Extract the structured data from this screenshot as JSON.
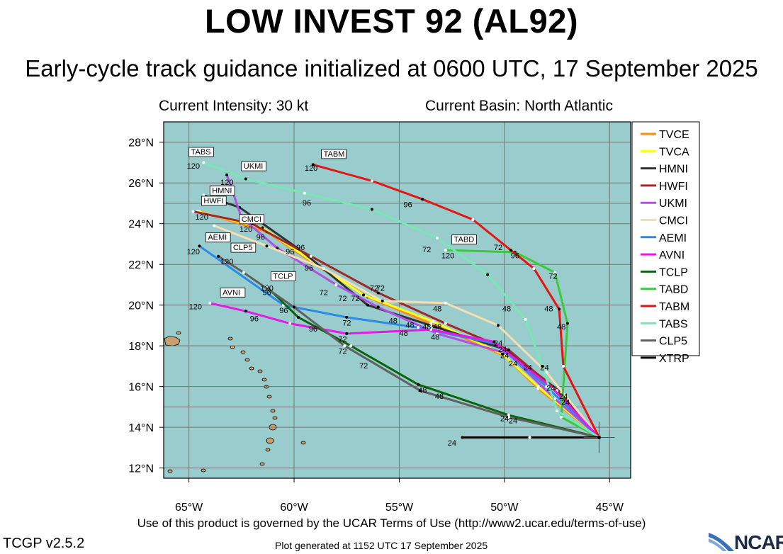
{
  "header": {
    "title": "LOW INVEST 92 (AL92)",
    "subtitle": "Early-cycle track guidance initialized at 0600 UTC, 17 September 2025",
    "intensity": "Current Intensity: 30 kt",
    "basin": "Current Basin: North Atlantic"
  },
  "footer": {
    "terms": "Use of this product is governed by the UCAR Terms of Use (http://www2.ucar.edu/terms-of-use)",
    "version": "TCGP v2.5.2",
    "generated": "Plot generated at 1152 UTC   17 September 2025",
    "logo_text": "NCAR"
  },
  "colors": {
    "ocean": "#99cccc",
    "land": "#c8a070",
    "grid": "#777777"
  },
  "chart_data": {
    "type": "line",
    "map": "track-guidance",
    "xlim": [
      -66.2,
      -44.0
    ],
    "ylim": [
      11.5,
      29.0
    ],
    "xticks": [
      -65,
      -60,
      -55,
      -50,
      -45
    ],
    "xtick_labels": [
      "65°W",
      "60°W",
      "55°W",
      "50°W",
      "45°W"
    ],
    "yticks": [
      12,
      14,
      16,
      18,
      20,
      22,
      24,
      26,
      28
    ],
    "ytick_labels": [
      "12°N",
      "14°N",
      "16°N",
      "18°N",
      "20°N",
      "22°N",
      "24°N",
      "26°N",
      "28°N"
    ],
    "initial_position": {
      "lon": -45.5,
      "lat": 13.5
    },
    "series": [
      {
        "name": "TVCE",
        "color": "#ff8c1a",
        "points": [
          [
            -45.5,
            13.5
          ],
          [
            -48.4,
            15.9
          ],
          [
            -50.0,
            17.5
          ],
          [
            -53.5,
            19.1
          ],
          [
            -56.5,
            20.4
          ],
          [
            -59.0,
            22.0
          ],
          [
            -61.3,
            23.6
          ],
          [
            -64.5,
            24.6
          ]
        ],
        "hours": [
          0,
          24,
          36,
          48,
          72,
          96,
          120,
          120
        ],
        "label": "TVCE",
        "label_pos": [
          -64.1,
          25.0
        ],
        "label_text": ""
      },
      {
        "name": "TVCA",
        "color": "#ffff1a",
        "points": [
          [
            -45.5,
            13.5
          ],
          [
            -48.4,
            16.0
          ],
          [
            -50.1,
            17.6
          ],
          [
            -53.4,
            19.2
          ],
          [
            -56.7,
            20.5
          ],
          [
            -59.2,
            22.2
          ],
          [
            -61.5,
            23.8
          ],
          [
            -64.6,
            24.6
          ]
        ],
        "hours": [],
        "label_text": ""
      },
      {
        "name": "HMNI",
        "color": "#333333",
        "points": [
          [
            -45.5,
            13.5
          ],
          [
            -47.3,
            15.7
          ],
          [
            -49.9,
            17.8
          ],
          [
            -53.5,
            19.0
          ],
          [
            -56.5,
            20.0
          ],
          [
            -59.7,
            22.7
          ],
          [
            -62.6,
            24.8
          ],
          [
            -64.3,
            25.4
          ]
        ],
        "hours": [
          0,
          24,
          36,
          48,
          72,
          96,
          120
        ],
        "label_text": "HMNI",
        "label_pos": [
          -63.9,
          25.5
        ]
      },
      {
        "name": "HWFI",
        "color": "#a02828",
        "points": [
          [
            -45.5,
            13.5
          ],
          [
            -47.5,
            15.8
          ],
          [
            -49.8,
            17.8
          ],
          [
            -52.8,
            19.1
          ],
          [
            -56.0,
            20.6
          ],
          [
            -59.2,
            22.4
          ],
          [
            -62.0,
            24.0
          ],
          [
            -64.8,
            24.6
          ]
        ],
        "hours": [
          0,
          24,
          36,
          48,
          72,
          96,
          120
        ],
        "label_text": "HWFI",
        "label_pos": [
          -64.3,
          25.0
        ]
      },
      {
        "name": "UKMI",
        "color": "#b050e6",
        "points": [
          [
            -45.5,
            13.5
          ],
          [
            -47.6,
            15.4
          ],
          [
            -49.8,
            17.6
          ],
          [
            -53.2,
            18.6
          ],
          [
            -56.0,
            19.9
          ],
          [
            -58.0,
            21.0
          ],
          [
            -60.8,
            22.8
          ],
          [
            -62.5,
            24.3
          ],
          [
            -63.2,
            26.4
          ]
        ],
        "hours": [
          0,
          24,
          36,
          48,
          72,
          96,
          120
        ],
        "label_text": "UKMI",
        "label_pos": [
          -62.4,
          26.7
        ]
      },
      {
        "name": "CMCI",
        "color": "#f5deb3",
        "points": [
          [
            -45.5,
            13.5
          ],
          [
            -48.0,
            16.7
          ],
          [
            -50.3,
            19.0
          ],
          [
            -52.8,
            20.1
          ],
          [
            -55.8,
            20.2
          ],
          [
            -58.6,
            21.8
          ],
          [
            -61.3,
            22.9
          ],
          [
            -63.8,
            23.9
          ]
        ],
        "hours": [
          0,
          24,
          36,
          48,
          72,
          96,
          120
        ],
        "label_text": "CMCI",
        "label_pos": [
          -62.5,
          24.1
        ]
      },
      {
        "name": "AEMI",
        "color": "#2a8ae6",
        "points": [
          [
            -45.5,
            13.5
          ],
          [
            -48.0,
            16.0
          ],
          [
            -50.4,
            18.1
          ],
          [
            -54.1,
            18.9
          ],
          [
            -57.5,
            19.4
          ],
          [
            -60.5,
            20.0
          ],
          [
            -64.5,
            22.9
          ]
        ],
        "hours": [
          0,
          24,
          36,
          48,
          72,
          96,
          120
        ],
        "label_text": "AEMI",
        "label_pos": [
          -64.1,
          23.2
        ]
      },
      {
        "name": "AVNI",
        "color": "#e61ae6",
        "points": [
          [
            -45.5,
            13.5
          ],
          [
            -47.7,
            15.9
          ],
          [
            -50.5,
            18.2
          ],
          [
            -53.5,
            18.8
          ],
          [
            -57.5,
            18.6
          ],
          [
            -60.2,
            19.1
          ],
          [
            -62.3,
            19.7
          ],
          [
            -64.0,
            20.1
          ]
        ],
        "hours": [
          0,
          24,
          36,
          48,
          72,
          96,
          120
        ],
        "label_text": "AVNI",
        "label_pos": [
          -63.4,
          20.5
        ]
      },
      {
        "name": "TCLP",
        "color": "#0a640a",
        "points": [
          [
            -45.5,
            13.5
          ],
          [
            -49.8,
            14.6
          ],
          [
            -54.1,
            16.1
          ],
          [
            -57.3,
            18.0
          ],
          [
            -59.8,
            19.4
          ],
          [
            -61.3,
            20.9
          ]
        ],
        "hours": [
          0,
          24,
          48,
          72,
          96,
          120
        ],
        "label_text": "TCLP",
        "label_pos": [
          -61.0,
          21.3
        ]
      },
      {
        "name": "TABD",
        "color": "#3cc83c",
        "points": [
          [
            -45.5,
            13.5
          ],
          [
            -47.3,
            14.5
          ],
          [
            -47.0,
            19.1
          ],
          [
            -47.6,
            21.6
          ],
          [
            -49.5,
            22.6
          ],
          [
            -52.8,
            22.7
          ]
        ],
        "hours": [
          0,
          24,
          48,
          72,
          96,
          120
        ],
        "label_text": "TABD",
        "label_pos": [
          -52.4,
          23.1
        ]
      },
      {
        "name": "TABM",
        "color": "#e61414",
        "points": [
          [
            -45.5,
            13.5
          ],
          [
            -47.2,
            17.0
          ],
          [
            -47.4,
            19.8
          ],
          [
            -48.6,
            21.8
          ],
          [
            -49.7,
            22.7
          ],
          [
            -51.5,
            24.2
          ],
          [
            -53.9,
            25.2
          ],
          [
            -56.3,
            26.1
          ],
          [
            -59.1,
            26.9
          ]
        ],
        "hours": [
          0,
          24,
          48,
          72,
          96,
          120
        ],
        "label_text": "TABM",
        "label_pos": [
          -58.6,
          27.3
        ]
      },
      {
        "name": "TABS",
        "color": "#7ae6b4",
        "points": [
          [
            -45.5,
            13.5
          ],
          [
            -47.5,
            14.8
          ],
          [
            -48.2,
            17.0
          ],
          [
            -49.0,
            19.3
          ],
          [
            -50.8,
            21.5
          ],
          [
            -53.2,
            23.3
          ],
          [
            -56.3,
            24.7
          ],
          [
            -59.5,
            25.5
          ],
          [
            -62.3,
            26.2
          ],
          [
            -64.3,
            27.0
          ]
        ],
        "hours": [
          0,
          24,
          48,
          72,
          96,
          120
        ],
        "label_text": "TABS",
        "label_pos": [
          -64.9,
          27.4
        ]
      },
      {
        "name": "CLP5",
        "color": "#606060",
        "points": [
          [
            -45.5,
            13.5
          ],
          [
            -49.8,
            14.5
          ],
          [
            -54.0,
            15.8
          ],
          [
            -57.6,
            18.0
          ],
          [
            -60.0,
            19.9
          ],
          [
            -62.4,
            21.6
          ],
          [
            -63.6,
            22.4
          ]
        ],
        "hours": [
          0,
          24,
          48,
          72,
          96,
          120
        ],
        "label_text": "CLP5",
        "label_pos": [
          -62.9,
          22.7
        ]
      },
      {
        "name": "XTRP",
        "color": "#000000",
        "points": [
          [
            -45.5,
            13.5
          ],
          [
            -48.8,
            13.5
          ],
          [
            -52.0,
            13.5
          ]
        ],
        "hours": [
          0,
          12,
          24
        ],
        "label_text": ""
      }
    ],
    "hour_labels": [
      {
        "text": "120",
        "pos": [
          -65.1,
          26.7
        ]
      },
      {
        "text": "120",
        "pos": [
          -63.5,
          25.9
        ]
      },
      {
        "text": "120",
        "pos": [
          -59.5,
          26.6
        ]
      },
      {
        "text": "120",
        "pos": [
          -64.7,
          24.2
        ]
      },
      {
        "text": "120",
        "pos": [
          -62.6,
          23.6
        ]
      },
      {
        "text": "120",
        "pos": [
          -65.1,
          22.5
        ]
      },
      {
        "text": "120",
        "pos": [
          -63.5,
          22.0
        ]
      },
      {
        "text": "120",
        "pos": [
          -65.0,
          19.8
        ]
      },
      {
        "text": "120",
        "pos": [
          -61.6,
          20.7
        ]
      },
      {
        "text": "120",
        "pos": [
          -53.0,
          22.3
        ]
      },
      {
        "text": "96",
        "pos": [
          -59.6,
          24.9
        ]
      },
      {
        "text": "96",
        "pos": [
          -54.8,
          24.8
        ]
      },
      {
        "text": "96",
        "pos": [
          -61.8,
          23.2
        ]
      },
      {
        "text": "96",
        "pos": [
          -60.4,
          22.5
        ]
      },
      {
        "text": "96",
        "pos": [
          -59.9,
          22.7
        ]
      },
      {
        "text": "96",
        "pos": [
          -59.5,
          21.7
        ]
      },
      {
        "text": "96",
        "pos": [
          -61.5,
          20.5
        ]
      },
      {
        "text": "96",
        "pos": [
          -60.7,
          19.6
        ]
      },
      {
        "text": "96",
        "pos": [
          -62.1,
          19.2
        ]
      },
      {
        "text": "96",
        "pos": [
          -59.3,
          18.7
        ]
      },
      {
        "text": "96",
        "pos": [
          -49.7,
          22.3
        ]
      },
      {
        "text": "72",
        "pos": [
          -53.9,
          22.6
        ]
      },
      {
        "text": "72",
        "pos": [
          -50.5,
          22.7
        ]
      },
      {
        "text": "72",
        "pos": [
          -47.9,
          21.3
        ]
      },
      {
        "text": "72",
        "pos": [
          -58.8,
          20.5
        ]
      },
      {
        "text": "72",
        "pos": [
          -57.9,
          20.2
        ]
      },
      {
        "text": "72",
        "pos": [
          -57.3,
          20.2
        ]
      },
      {
        "text": "72",
        "pos": [
          -56.4,
          20.7
        ]
      },
      {
        "text": "72",
        "pos": [
          -56.1,
          20.7
        ]
      },
      {
        "text": "72",
        "pos": [
          -57.7,
          19.0
        ]
      },
      {
        "text": "72",
        "pos": [
          -57.9,
          18.2
        ]
      },
      {
        "text": "72",
        "pos": [
          -57.9,
          17.6
        ]
      },
      {
        "text": "72",
        "pos": [
          -56.9,
          16.9
        ]
      },
      {
        "text": "48",
        "pos": [
          -53.4,
          19.7
        ]
      },
      {
        "text": "48",
        "pos": [
          -50.1,
          19.7
        ]
      },
      {
        "text": "48",
        "pos": [
          -48.1,
          19.7
        ]
      },
      {
        "text": "48",
        "pos": [
          -47.5,
          18.8
        ]
      },
      {
        "text": "48",
        "pos": [
          -55.5,
          19.1
        ]
      },
      {
        "text": "48",
        "pos": [
          -54.7,
          18.9
        ]
      },
      {
        "text": "48",
        "pos": [
          -53.9,
          18.8
        ]
      },
      {
        "text": "48",
        "pos": [
          -53.4,
          18.8
        ]
      },
      {
        "text": "48",
        "pos": [
          -53.5,
          18.3
        ]
      },
      {
        "text": "48",
        "pos": [
          -55.0,
          18.5
        ]
      },
      {
        "text": "48",
        "pos": [
          -54.1,
          15.7
        ]
      },
      {
        "text": "48",
        "pos": [
          -53.3,
          15.4
        ]
      },
      {
        "text": "24",
        "pos": [
          -50.5,
          18.0
        ]
      },
      {
        "text": "24",
        "pos": [
          -50.3,
          17.7
        ]
      },
      {
        "text": "24",
        "pos": [
          -50.2,
          17.4
        ]
      },
      {
        "text": "24",
        "pos": [
          -49.8,
          17.0
        ]
      },
      {
        "text": "24",
        "pos": [
          -49.1,
          16.8
        ]
      },
      {
        "text": "24",
        "pos": [
          -48.3,
          16.8
        ]
      },
      {
        "text": "24",
        "pos": [
          -48.0,
          15.8
        ]
      },
      {
        "text": "24",
        "pos": [
          -47.4,
          15.4
        ]
      },
      {
        "text": "24",
        "pos": [
          -47.3,
          15.1
        ]
      },
      {
        "text": "24",
        "pos": [
          -50.2,
          14.3
        ]
      },
      {
        "text": "24",
        "pos": [
          -49.8,
          14.2
        ]
      },
      {
        "text": "24",
        "pos": [
          -52.7,
          13.1
        ]
      }
    ],
    "legend_position": "right"
  }
}
